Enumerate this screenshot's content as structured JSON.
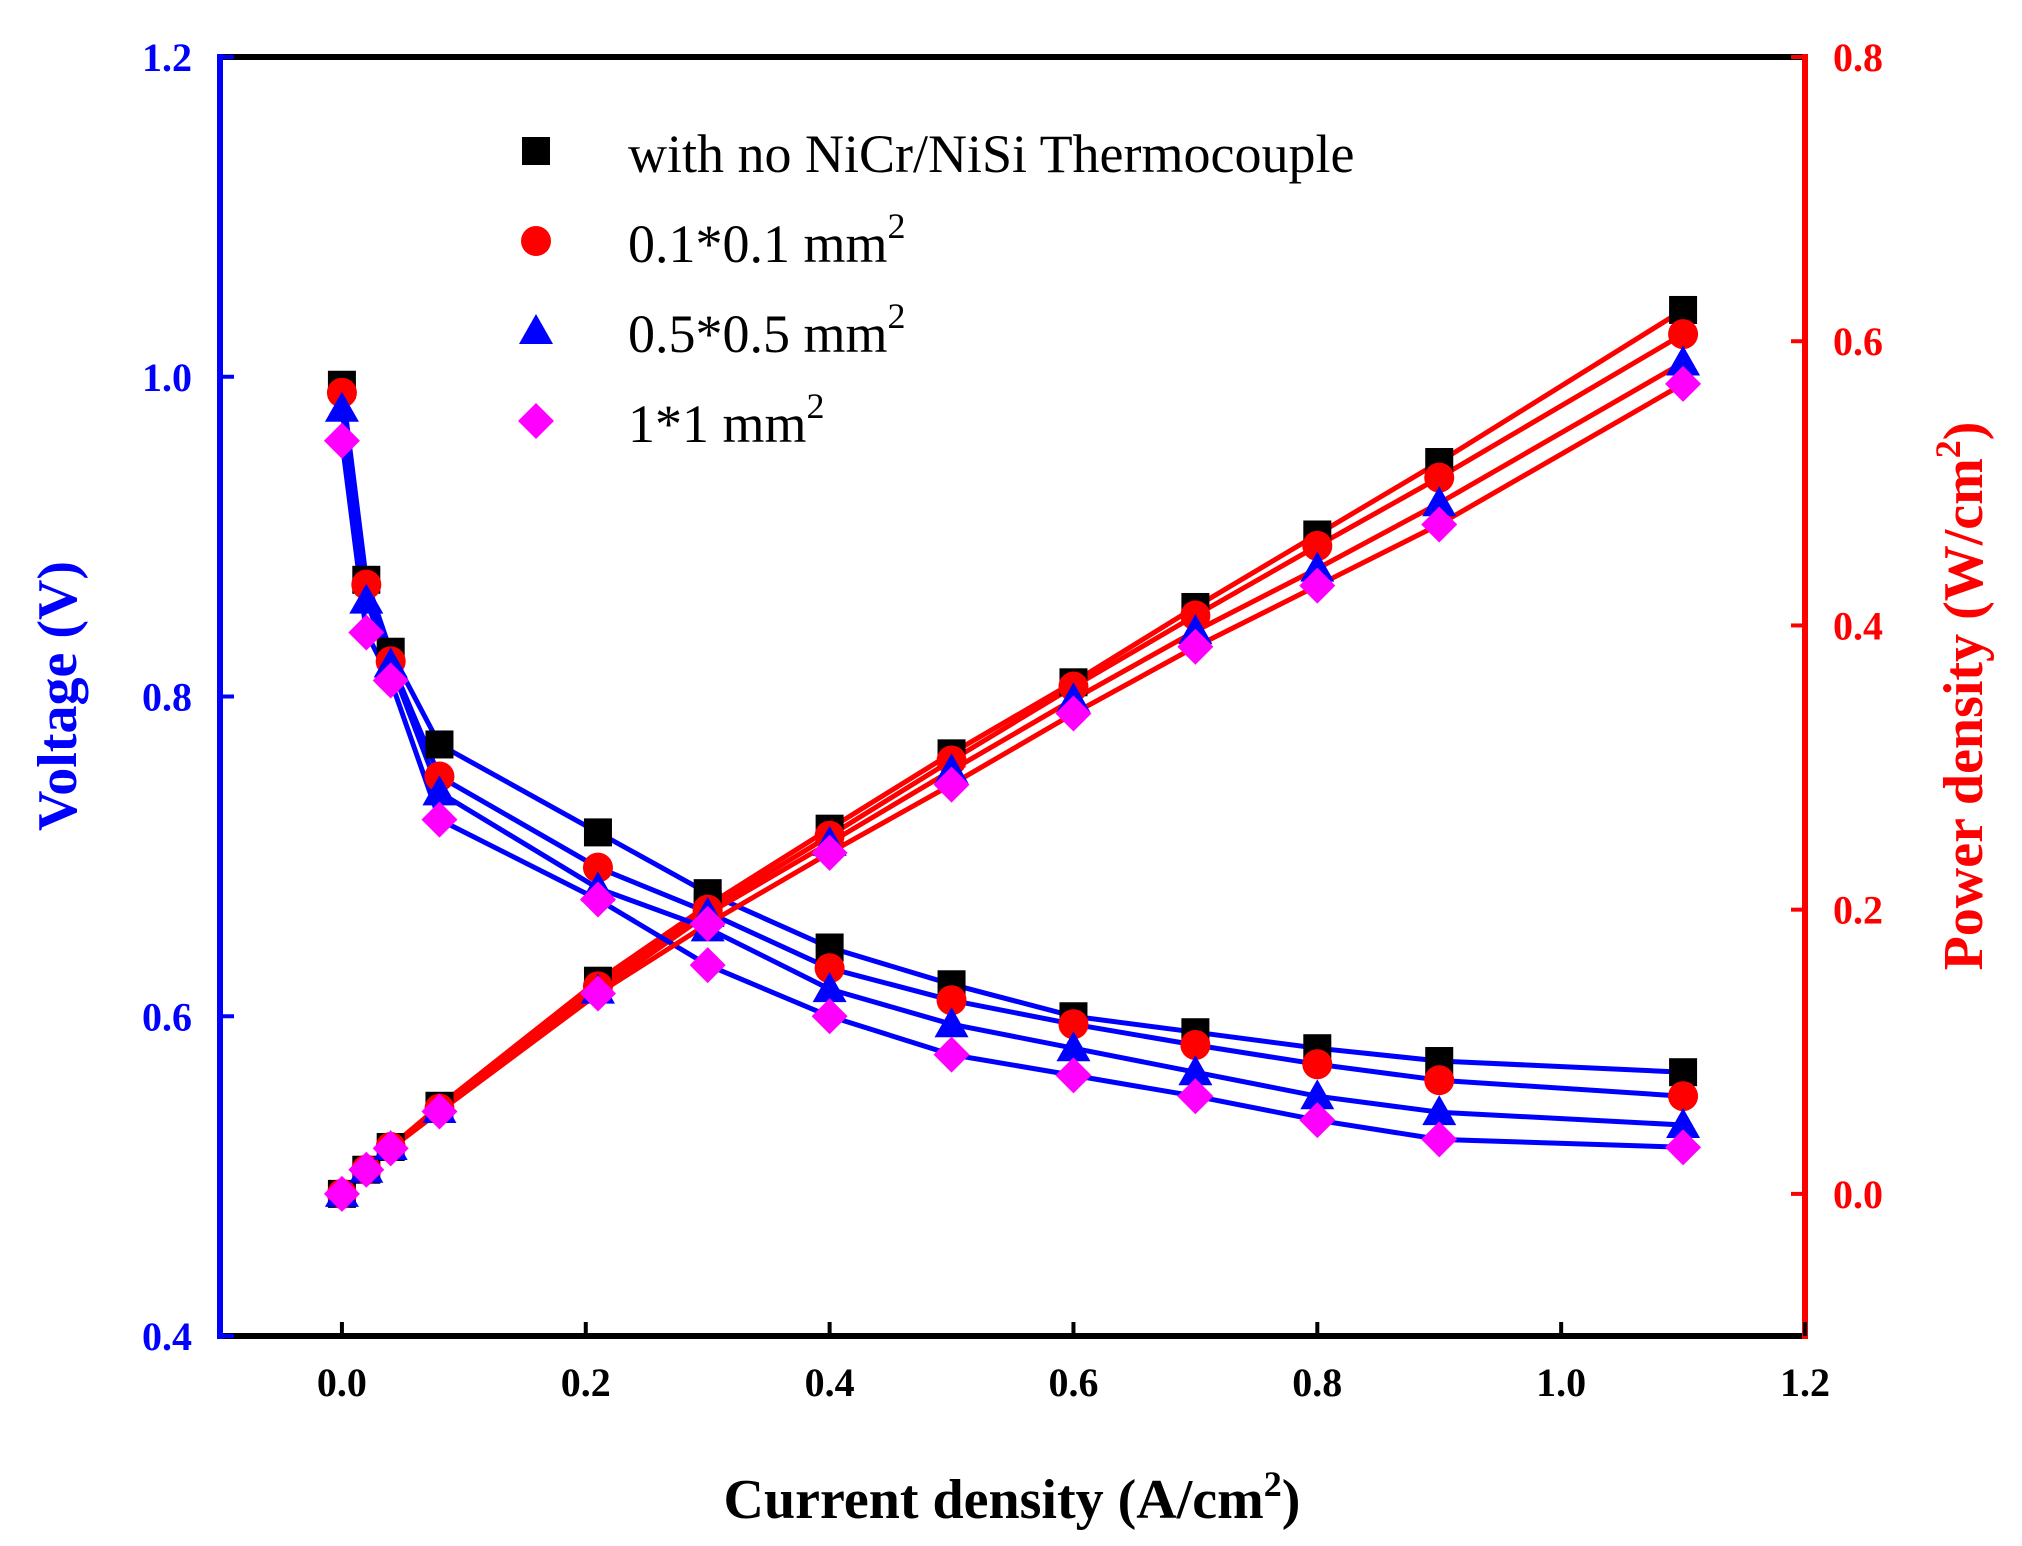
{
  "chart_data": {
    "type": "line",
    "x": [
      0,
      0.02,
      0.04,
      0.08,
      0.21,
      0.3,
      0.4,
      0.5,
      0.6,
      0.7,
      0.8,
      0.9,
      1.1
    ],
    "xlabel": "Current density (A/cm",
    "xlabel_sup": "2",
    "xlabel_end": ")",
    "ylabel_left": "Voltage (V)",
    "ylabel_right": "Power density (W/cm",
    "ylabel_right_sup": "2",
    "ylabel_right_end": ")",
    "xlim": [
      -0.1,
      1.2
    ],
    "ylim_left": [
      0.4,
      1.2
    ],
    "ylim_right": [
      -0.1,
      0.8
    ],
    "xticks": [
      "0.0",
      "0.2",
      "0.4",
      "0.6",
      "0.8",
      "1.0",
      "1.2"
    ],
    "yticks_left": [
      "0.4",
      "0.6",
      "0.8",
      "1.0",
      "1.2"
    ],
    "yticks_right": [
      "0.0",
      "0.2",
      "0.4",
      "0.6",
      "0.8"
    ],
    "legend_position": "top-left",
    "series": [
      {
        "name": "with no NiCr/NiSi Thermocouple",
        "name_sup": "",
        "marker": "square",
        "color": "#000000",
        "voltage": [
          0.995,
          0.873,
          0.828,
          0.77,
          0.715,
          0.677,
          0.643,
          0.62,
          0.6,
          0.59,
          0.58,
          0.572,
          0.565
        ],
        "power": [
          0.0,
          0.017,
          0.033,
          0.062,
          0.15,
          0.203,
          0.257,
          0.31,
          0.36,
          0.413,
          0.464,
          0.515,
          0.622
        ]
      },
      {
        "name": "0.1*0.1 mm",
        "name_sup": "2",
        "marker": "circle",
        "color": "#ff0000",
        "voltage": [
          0.99,
          0.87,
          0.822,
          0.75,
          0.693,
          0.665,
          0.63,
          0.61,
          0.595,
          0.582,
          0.57,
          0.56,
          0.55
        ],
        "power": [
          0.0,
          0.017,
          0.033,
          0.06,
          0.146,
          0.2,
          0.252,
          0.305,
          0.357,
          0.407,
          0.456,
          0.504,
          0.605
        ]
      },
      {
        "name": "0.5*0.5 mm",
        "name_sup": "2",
        "marker": "triangle",
        "color": "#0000ff",
        "voltage": [
          0.98,
          0.86,
          0.82,
          0.74,
          0.68,
          0.655,
          0.617,
          0.595,
          0.58,
          0.565,
          0.55,
          0.54,
          0.532
        ],
        "power": [
          0.0,
          0.017,
          0.033,
          0.059,
          0.143,
          0.197,
          0.247,
          0.298,
          0.348,
          0.396,
          0.44,
          0.486,
          0.585
        ]
      },
      {
        "name": "1*1 mm",
        "name_sup": "2",
        "marker": "diamond",
        "color": "#ff00ff",
        "voltage": [
          0.96,
          0.84,
          0.81,
          0.723,
          0.673,
          0.632,
          0.6,
          0.576,
          0.563,
          0.55,
          0.535,
          0.523,
          0.518
        ],
        "power": [
          0.0,
          0.017,
          0.032,
          0.058,
          0.141,
          0.19,
          0.24,
          0.288,
          0.338,
          0.385,
          0.428,
          0.471,
          0.57
        ]
      }
    ]
  },
  "colors": {
    "left_axis": "#0000ff",
    "right_axis": "#ff0000",
    "frame": "#000000",
    "voltage_lines": "#0000ff",
    "power_lines": "#ff0000"
  }
}
